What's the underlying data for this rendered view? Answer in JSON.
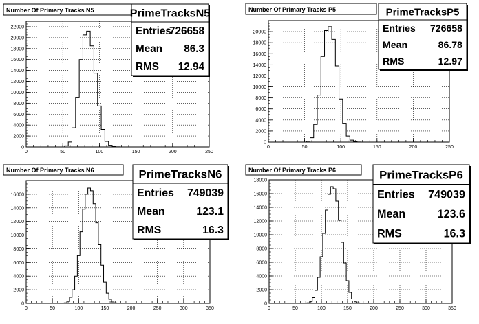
{
  "chart_data": [
    {
      "type": "line",
      "title": "Number Of Primary Tracks N5",
      "xlim": [
        0,
        250
      ],
      "ylim": [
        0,
        23000
      ],
      "x_ticks": [
        0,
        50,
        100,
        150,
        200,
        250
      ],
      "y_ticks": [
        0,
        2000,
        4000,
        6000,
        8000,
        10000,
        12000,
        14000,
        16000,
        18000,
        20000,
        22000
      ],
      "grid": true,
      "x": [
        50,
        55,
        60,
        65,
        70,
        75,
        80,
        85,
        90,
        95,
        100,
        105,
        110,
        115,
        120,
        125,
        130,
        135
      ],
      "values": [
        0,
        200,
        900,
        3500,
        9000,
        16000,
        20500,
        21200,
        18500,
        13500,
        7500,
        3200,
        1000,
        300,
        80,
        20,
        0,
        0
      ],
      "stats": {
        "name": "PrimeTracksN5",
        "entries": "726658",
        "mean": "86.3",
        "rms": "12.94"
      }
    },
    {
      "type": "line",
      "title": "Number Of Primary Tracks P5",
      "xlim": [
        0,
        250
      ],
      "ylim": [
        0,
        22000
      ],
      "x_ticks": [
        0,
        50,
        100,
        150,
        200,
        250
      ],
      "y_ticks": [
        0,
        2000,
        4000,
        6000,
        8000,
        10000,
        12000,
        14000,
        16000,
        18000,
        20000
      ],
      "grid": true,
      "x": [
        50,
        55,
        60,
        65,
        70,
        75,
        80,
        85,
        90,
        95,
        100,
        105,
        110,
        115,
        120,
        125,
        130,
        135
      ],
      "values": [
        0,
        150,
        800,
        3200,
        8500,
        15500,
        20200,
        20900,
        18600,
        13800,
        7800,
        3400,
        1100,
        350,
        90,
        20,
        0,
        0
      ],
      "stats": {
        "name": "PrimeTracksP5",
        "entries": "726658",
        "mean": "86.78",
        "rms": "12.97"
      }
    },
    {
      "type": "line",
      "title": "Number Of Primary Tracks N6",
      "xlim": [
        0,
        350
      ],
      "ylim": [
        0,
        18000
      ],
      "x_ticks": [
        0,
        50,
        100,
        150,
        200,
        250,
        300,
        350
      ],
      "y_ticks": [
        0,
        2000,
        4000,
        6000,
        8000,
        10000,
        12000,
        14000,
        16000
      ],
      "grid": true,
      "x": [
        70,
        75,
        80,
        85,
        90,
        95,
        100,
        105,
        110,
        115,
        120,
        125,
        130,
        135,
        140,
        145,
        150,
        155,
        160,
        165,
        170,
        175,
        180
      ],
      "values": [
        0,
        80,
        300,
        900,
        2000,
        4000,
        7000,
        10500,
        13800,
        16000,
        16900,
        16500,
        14600,
        11800,
        8600,
        5600,
        3100,
        1500,
        600,
        200,
        60,
        10,
        0
      ],
      "stats": {
        "name": "PrimeTracksN6",
        "entries": "749039",
        "mean": "123.1",
        "rms": "16.3"
      }
    },
    {
      "type": "line",
      "title": "Number Of Primary Tracks P6",
      "xlim": [
        0,
        350
      ],
      "ylim": [
        0,
        18000
      ],
      "x_ticks": [
        0,
        50,
        100,
        150,
        200,
        250,
        300,
        350
      ],
      "y_ticks": [
        0,
        2000,
        4000,
        6000,
        8000,
        10000,
        12000,
        14000,
        16000,
        18000
      ],
      "grid": true,
      "x": [
        70,
        75,
        80,
        85,
        90,
        95,
        100,
        105,
        110,
        115,
        120,
        125,
        130,
        135,
        140,
        145,
        150,
        155,
        160,
        165,
        170,
        175,
        180
      ],
      "values": [
        0,
        70,
        280,
        850,
        1900,
        3800,
        6800,
        10200,
        13600,
        15900,
        17000,
        16700,
        14900,
        12100,
        8900,
        5900,
        3300,
        1600,
        650,
        220,
        70,
        10,
        0
      ],
      "stats": {
        "name": "PrimeTracksP6",
        "entries": "749039",
        "mean": "123.6",
        "rms": "16.3"
      }
    }
  ],
  "labels": {
    "entries": "Entries",
    "mean": "Mean",
    "rms": "RMS"
  }
}
